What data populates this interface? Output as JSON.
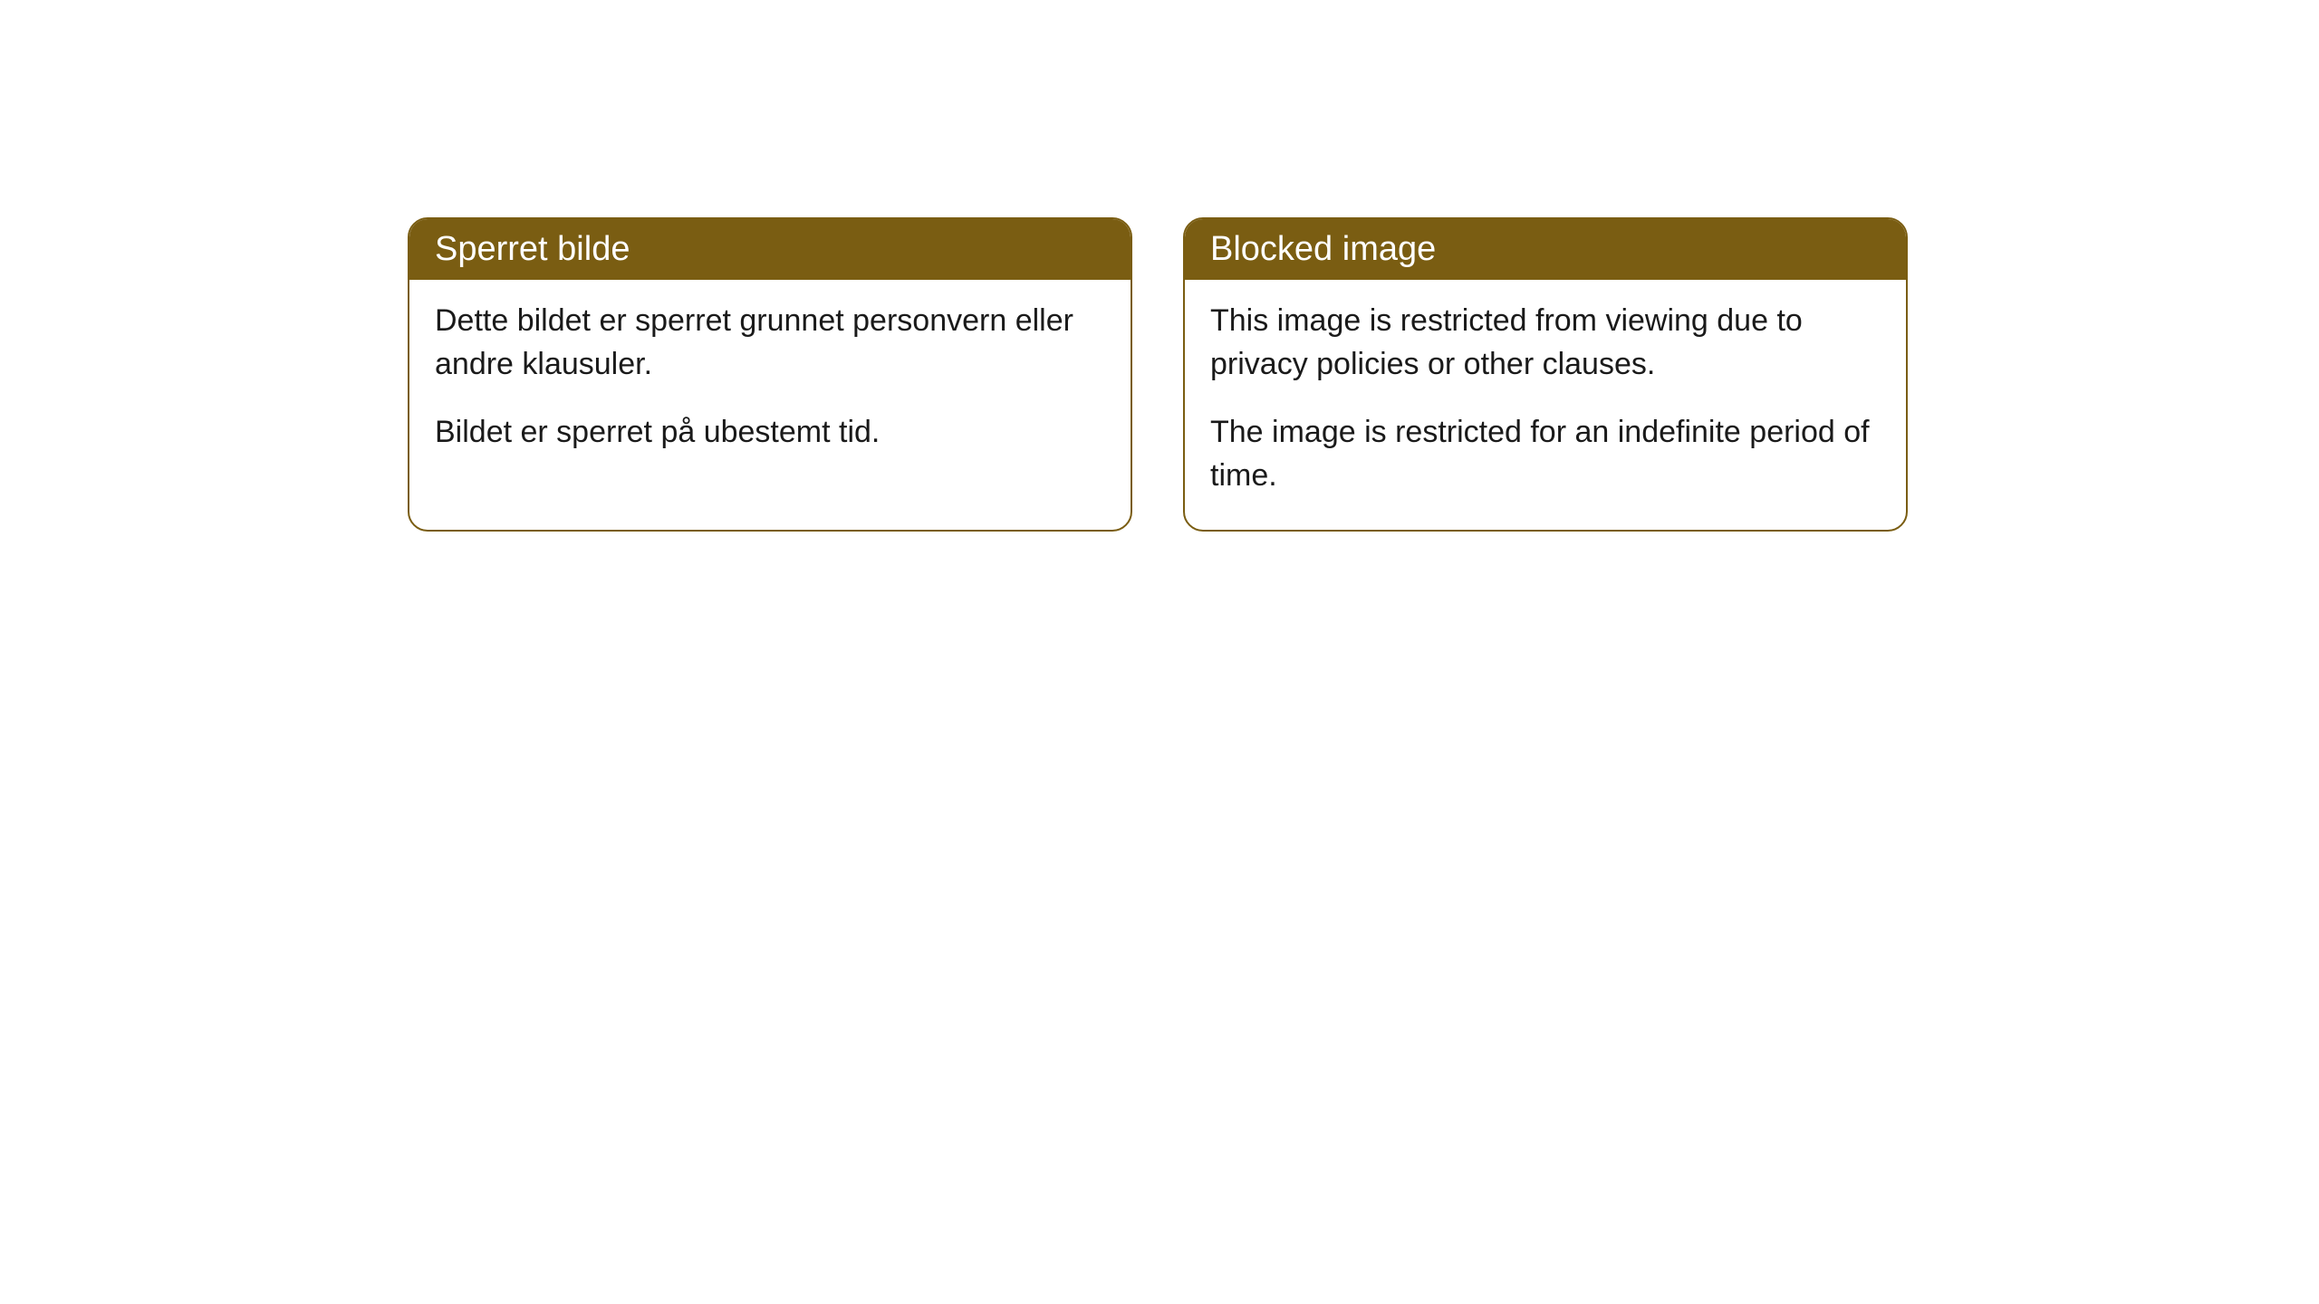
{
  "cards": [
    {
      "title": "Sperret bilde",
      "paragraph1": "Dette bildet er sperret grunnet personvern eller andre klausuler.",
      "paragraph2": "Bildet er sperret på ubestemt tid."
    },
    {
      "title": "Blocked image",
      "paragraph1": "This image is restricted from viewing due to privacy policies or other clauses.",
      "paragraph2": "The image is restricted for an indefinite period of time."
    }
  ],
  "style": {
    "header_background": "#7a5d12",
    "header_text_color": "#ffffff",
    "border_color": "#7a5d12",
    "body_background": "#ffffff",
    "body_text_color": "#1a1a1a",
    "border_radius": 22,
    "header_fontsize": 38,
    "body_fontsize": 34
  }
}
